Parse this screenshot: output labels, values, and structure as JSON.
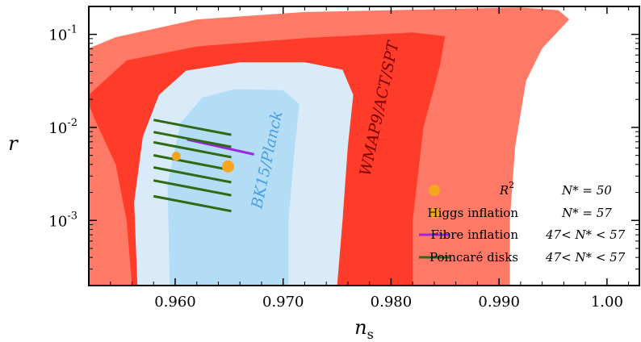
{
  "chart_data": {
    "type": "scatter",
    "xlabel": "n",
    "xlabel_sub": "s",
    "ylabel": "r",
    "xlim": [
      0.952,
      1.003
    ],
    "ylim_log10": [
      -3.7,
      -0.7
    ],
    "y_scale": "log",
    "x_ticks": [
      {
        "value": 0.96,
        "label": "0.960"
      },
      {
        "value": 0.97,
        "label": "0.970"
      },
      {
        "value": 0.98,
        "label": "0.980"
      },
      {
        "value": 0.99,
        "label": "0.990"
      },
      {
        "value": 1.0,
        "label": "1.00"
      }
    ],
    "y_ticks": [
      {
        "log10": -1,
        "base": "10",
        "exp": "-1"
      },
      {
        "log10": -2,
        "base": "10",
        "exp": "-2"
      },
      {
        "log10": -3,
        "base": "10",
        "exp": "-3"
      }
    ],
    "colors": {
      "wmap_outer": "#ff7a66",
      "wmap_inner": "#ff3b2a",
      "bk_outer": "#d9ebf8",
      "bk_inner": "#b3dcf5",
      "r2": "#f5a51e",
      "fibre": "#9b24e8",
      "poincare": "#2e6b14",
      "bk_label": "#4a9fe0",
      "wmap_label": "#7a0000"
    },
    "regions": [
      {
        "name": "WMAP9/ACT/SPT",
        "level": "outer",
        "color_key": "wmap_outer",
        "points": [
          [
            0.952,
            -1.15
          ],
          [
            0.9545,
            -1.03
          ],
          [
            0.962,
            -0.84
          ],
          [
            0.972,
            -0.76
          ],
          [
            0.984,
            -0.73
          ],
          [
            0.992,
            -0.71
          ],
          [
            0.9955,
            -0.74
          ],
          [
            0.9965,
            -0.84
          ],
          [
            0.994,
            -1.15
          ],
          [
            0.9925,
            -1.5
          ],
          [
            0.9915,
            -2.2
          ],
          [
            0.991,
            -3.0
          ],
          [
            0.991,
            -3.7
          ],
          [
            0.952,
            -3.7
          ]
        ]
      },
      {
        "name": "WMAP9/ACT/SPT",
        "level": "inner",
        "color_key": "wmap_inner",
        "points": [
          [
            0.952,
            -1.65
          ],
          [
            0.9555,
            -1.28
          ],
          [
            0.962,
            -1.13
          ],
          [
            0.972,
            -1.04
          ],
          [
            0.982,
            -0.98
          ],
          [
            0.985,
            -1.02
          ],
          [
            0.9845,
            -1.35
          ],
          [
            0.983,
            -2.0
          ],
          [
            0.982,
            -3.0
          ],
          [
            0.982,
            -3.7
          ],
          [
            0.956,
            -3.7
          ],
          [
            0.9555,
            -3.0
          ],
          [
            0.9545,
            -2.4
          ],
          [
            0.9525,
            -1.9
          ],
          [
            0.952,
            -1.75
          ]
        ]
      },
      {
        "name": "BK15/Planck",
        "level": "outer",
        "color_key": "bk_outer",
        "points": [
          [
            0.9565,
            -3.7
          ],
          [
            0.9562,
            -2.8
          ],
          [
            0.957,
            -2.1
          ],
          [
            0.9585,
            -1.65
          ],
          [
            0.961,
            -1.39
          ],
          [
            0.966,
            -1.3
          ],
          [
            0.972,
            -1.3
          ],
          [
            0.9755,
            -1.38
          ],
          [
            0.9765,
            -1.65
          ],
          [
            0.976,
            -2.2
          ],
          [
            0.9755,
            -3.0
          ],
          [
            0.975,
            -3.7
          ]
        ]
      },
      {
        "name": "BK15/Planck",
        "level": "inner",
        "color_key": "bk_inner",
        "points": [
          [
            0.9595,
            -3.7
          ],
          [
            0.9593,
            -2.6
          ],
          [
            0.9605,
            -1.95
          ],
          [
            0.9625,
            -1.68
          ],
          [
            0.9655,
            -1.59
          ],
          [
            0.97,
            -1.6
          ],
          [
            0.9715,
            -1.75
          ],
          [
            0.971,
            -2.3
          ],
          [
            0.9705,
            -3.0
          ],
          [
            0.9705,
            -3.7
          ]
        ]
      }
    ],
    "region_labels": [
      {
        "text": "BK15/Planck",
        "x": 0.9686,
        "log10": -2.35,
        "angle": -78,
        "color_key": "bk_label"
      },
      {
        "text": "WMAP9/ACT/SPT",
        "x": 0.979,
        "log10": -1.8,
        "angle": -78,
        "color_key": "wmap_label"
      }
    ],
    "series": [
      {
        "name": "R²",
        "label_base": "R",
        "label_sup": "2",
        "N": "N* = 50",
        "type": "point",
        "color_key": "r2",
        "x": 0.9601,
        "log10": -2.31,
        "size": 5.5
      },
      {
        "name": "Higgs inflation",
        "N": "N* = 57",
        "type": "point",
        "color_key": "r2",
        "x": 0.9649,
        "log10": -2.42,
        "size": 7.5
      },
      {
        "name": "Fibre inflation",
        "N": "47< N* < 57",
        "type": "line",
        "color_key": "fibre",
        "segments": [
          [
            [
              0.9611,
              -2.13
            ],
            [
              0.9673,
              -2.29
            ]
          ]
        ]
      },
      {
        "name": "Poincaré disks",
        "N": "47< N* < 57",
        "type": "line",
        "color_key": "poincare",
        "segments": [
          [
            [
              0.958,
              -1.92
            ],
            [
              0.9652,
              -2.08
            ]
          ],
          [
            [
              0.958,
              -2.05
            ],
            [
              0.9652,
              -2.21
            ]
          ],
          [
            [
              0.958,
              -2.16
            ],
            [
              0.9652,
              -2.32
            ]
          ],
          [
            [
              0.958,
              -2.3
            ],
            [
              0.9652,
              -2.46
            ]
          ],
          [
            [
              0.958,
              -2.43
            ],
            [
              0.9652,
              -2.59
            ]
          ],
          [
            [
              0.958,
              -2.57
            ],
            [
              0.9652,
              -2.73
            ]
          ],
          [
            [
              0.958,
              -2.74
            ],
            [
              0.9652,
              -2.9
            ]
          ]
        ]
      }
    ],
    "legend": {
      "placement": "bottom-right",
      "entries": [
        {
          "label": "R",
          "sup": "2",
          "marker": "point",
          "color_key": "r2",
          "n_text": "N* = 50",
          "italic": true
        },
        {
          "label": "Higgs inflation",
          "marker": "point",
          "color_key": "r2",
          "n_text": "N* = 57",
          "italic": false
        },
        {
          "label": "Fibre inflation",
          "marker": "line",
          "color_key": "fibre",
          "n_text": "47< N* < 57",
          "italic": false
        },
        {
          "label": "Poincaré disks",
          "marker": "line",
          "color_key": "poincare",
          "n_text": "47< N* < 57",
          "italic": false
        }
      ]
    }
  }
}
